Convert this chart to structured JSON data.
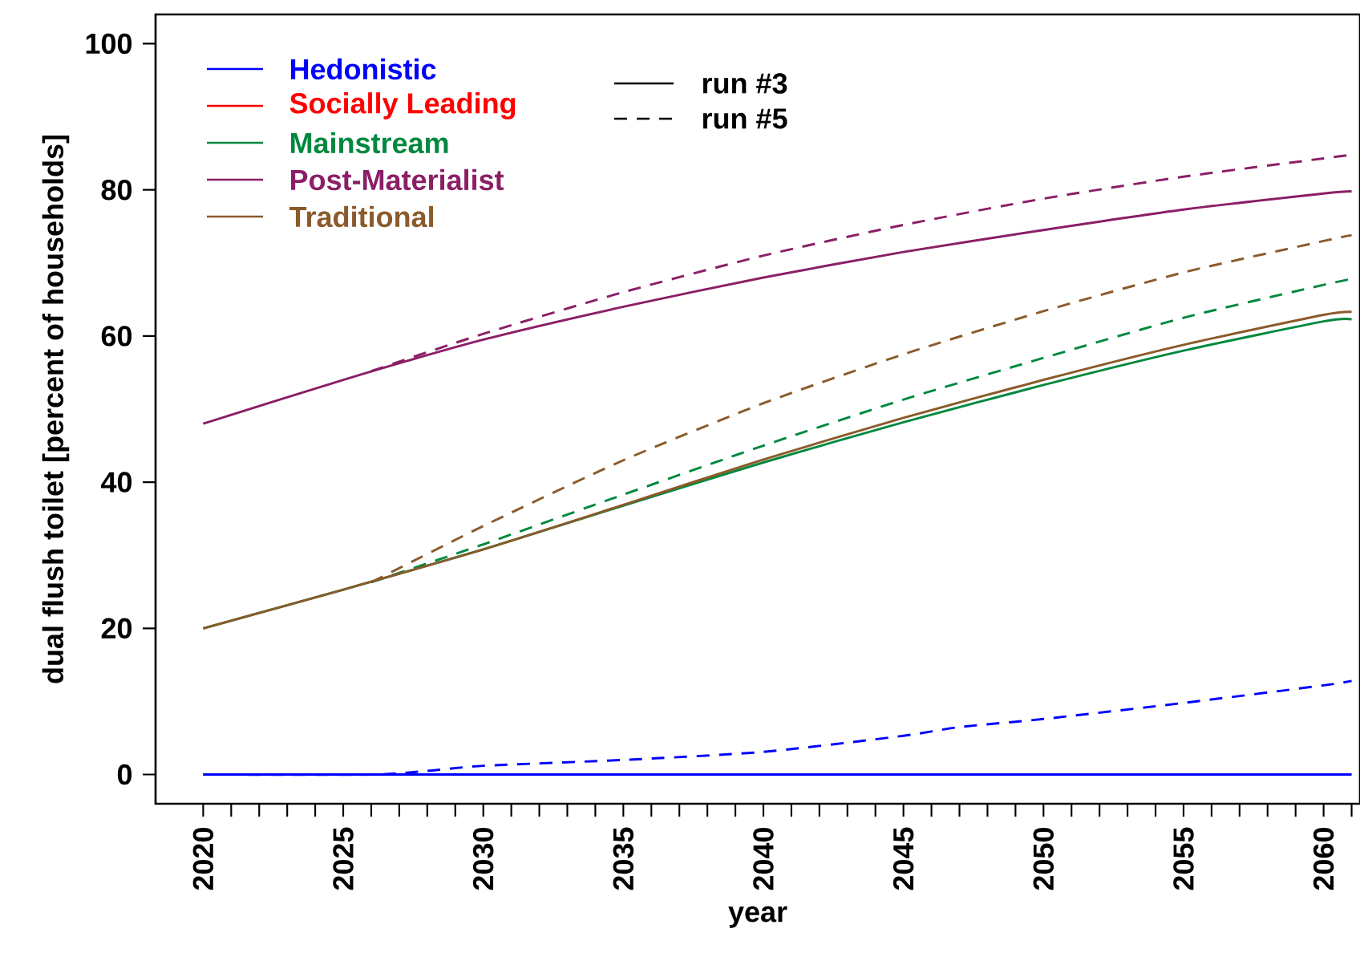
{
  "chart_data": {
    "type": "line",
    "xlabel": "year",
    "ylabel": "dual flush toilet [percent of households]",
    "xlim": [
      2018.3,
      2061.3
    ],
    "ylim": [
      -4,
      104
    ],
    "xticks": [
      2020,
      {
        "value": 2021,
        "label": null
      },
      {
        "value": 2022,
        "label": null
      },
      {
        "value": 2023,
        "label": null
      },
      {
        "value": 2024,
        "label": null
      },
      2025,
      {
        "value": 2026,
        "label": null
      },
      {
        "value": 2027,
        "label": null
      },
      {
        "value": 2028,
        "label": null
      },
      {
        "value": 2029,
        "label": null
      },
      2030,
      {
        "value": 2031,
        "label": null
      },
      {
        "value": 2032,
        "label": null
      },
      {
        "value": 2033,
        "label": null
      },
      {
        "value": 2034,
        "label": null
      },
      2035,
      {
        "value": 2036,
        "label": null
      },
      {
        "value": 2037,
        "label": null
      },
      {
        "value": 2038,
        "label": null
      },
      {
        "value": 2039,
        "label": null
      },
      2040,
      {
        "value": 2041,
        "label": null
      },
      {
        "value": 2042,
        "label": null
      },
      {
        "value": 2043,
        "label": null
      },
      {
        "value": 2044,
        "label": null
      },
      2045,
      {
        "value": 2046,
        "label": null
      },
      {
        "value": 2047,
        "label": null
      },
      {
        "value": 2048,
        "label": null
      },
      {
        "value": 2049,
        "label": null
      },
      2050,
      {
        "value": 2051,
        "label": null
      },
      {
        "value": 2052,
        "label": null
      },
      {
        "value": 2053,
        "label": null
      },
      {
        "value": 2054,
        "label": null
      },
      2055,
      {
        "value": 2056,
        "label": null
      },
      {
        "value": 2057,
        "label": null
      },
      {
        "value": 2058,
        "label": null
      },
      {
        "value": 2059,
        "label": null
      },
      2060,
      {
        "value": 2061,
        "label": null
      }
    ],
    "yticks": [
      0,
      20,
      40,
      60,
      80,
      100
    ],
    "legend": "top left",
    "grid": false,
    "marker": "none",
    "annotations": [
      "run #3",
      "run #5"
    ],
    "series": [
      {
        "name": "Hedonistic",
        "color": "#0000ff",
        "line_style": "solid",
        "x": [
          2020,
          2061
        ],
        "values": [
          0,
          0
        ]
      },
      {
        "color": "#0000ff",
        "line_style": "dashed",
        "x": [
          2020,
          2026,
          2028,
          2030,
          2035,
          2040,
          2045,
          2047,
          2050,
          2055,
          2060,
          2061
        ],
        "values": [
          0,
          0,
          0.5,
          1.2,
          2.0,
          3.1,
          5.3,
          6.5,
          7.6,
          9.8,
          12.2,
          12.8
        ]
      },
      {
        "name": "Socially Leading",
        "color": "#ff0000",
        "line_style": "solid"
      },
      {
        "name": "Mainstream",
        "color": "#00883f",
        "line_style": "solid",
        "x": [
          2020,
          2025,
          2030,
          2035,
          2040,
          2045,
          2050,
          2055,
          2060,
          2061
        ],
        "values": [
          20,
          25.3,
          30.8,
          36.8,
          42.7,
          48.2,
          53.3,
          58,
          62,
          62.3
        ]
      },
      {
        "color": "#00883f",
        "line_style": "dashed",
        "x": [
          2026,
          2030,
          2035,
          2040,
          2045,
          2050,
          2055,
          2060,
          2061
        ],
        "values": [
          26.3,
          31.5,
          38.3,
          45,
          51.3,
          57,
          62.5,
          67,
          67.8
        ]
      },
      {
        "name": "Post-Materialist",
        "color": "#8b1f66",
        "line_style": "solid",
        "x": [
          2020,
          2025,
          2030,
          2035,
          2040,
          2045,
          2050,
          2055,
          2060,
          2061
        ],
        "values": [
          48,
          54,
          59.5,
          64,
          68,
          71.5,
          74.5,
          77.3,
          79.5,
          79.8
        ]
      },
      {
        "color": "#8b1f66",
        "line_style": "dashed",
        "x": [
          2026,
          2030,
          2035,
          2040,
          2045,
          2050,
          2055,
          2060,
          2061
        ],
        "values": [
          55.2,
          60.3,
          66,
          71,
          75.2,
          78.8,
          81.8,
          84.3,
          84.8
        ]
      },
      {
        "name": "Traditional",
        "color": "#8b5a2b",
        "line_style": "solid",
        "x": [
          2020,
          2025,
          2030,
          2035,
          2040,
          2045,
          2050,
          2055,
          2060,
          2061
        ],
        "values": [
          20,
          25.3,
          30.8,
          36.9,
          43.1,
          48.8,
          54,
          58.8,
          62.9,
          63.3
        ]
      },
      {
        "color": "#8b5a2b",
        "line_style": "dashed",
        "x": [
          2026,
          2030,
          2035,
          2040,
          2045,
          2050,
          2055,
          2060,
          2061
        ],
        "values": [
          26.3,
          34,
          43,
          50.8,
          57.5,
          63.4,
          68.7,
          73,
          73.8
        ]
      }
    ]
  }
}
